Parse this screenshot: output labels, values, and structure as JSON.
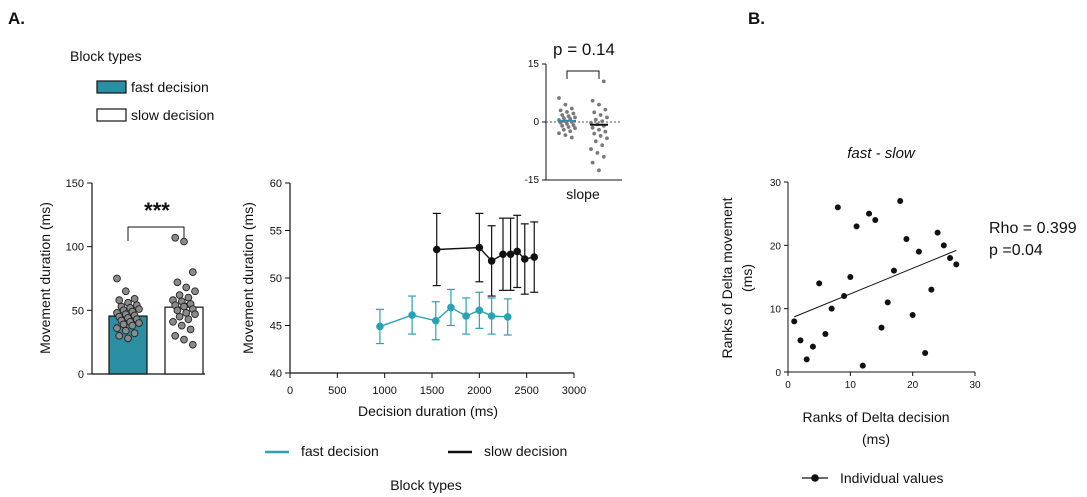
{
  "panel_labels": {
    "a": "A.",
    "b": "B."
  },
  "colors": {
    "fast": "#2a8fa3",
    "fast_line": "#2aa1b5",
    "slow": "#111111",
    "dot_fill": "#8a8a8a"
  },
  "block_legend": {
    "title": "Block types",
    "items": [
      {
        "label": "fast decision",
        "color": "#2a8fa3"
      },
      {
        "label": "slow decision",
        "color": "#ffffff"
      }
    ]
  },
  "bottom_legend": {
    "items": [
      {
        "label": "fast decision",
        "color": "#2aa1b5"
      },
      {
        "label": "slow decision",
        "color": "#111111"
      }
    ],
    "title": "Block types"
  },
  "panel_b_legend": {
    "label": "Individual values"
  },
  "chart_data": [
    {
      "id": "bar-chart",
      "type": "bar",
      "ylabel": "Movement duration (ms)",
      "ylim": [
        0,
        150
      ],
      "yticks": [
        0,
        50,
        100,
        150
      ],
      "annotation": "***",
      "bars": [
        {
          "name": "fast decision",
          "mean": 45.5,
          "points": [
            75,
            65,
            59,
            58,
            56,
            54,
            53,
            52,
            51,
            50,
            49,
            48,
            47,
            46,
            45,
            44,
            43,
            42,
            41,
            40,
            39,
            38,
            36,
            34,
            32,
            30,
            28
          ]
        },
        {
          "name": "slow decision",
          "mean": 52.5,
          "points": [
            107,
            104,
            80,
            72,
            68,
            65,
            62,
            60,
            58,
            57,
            55,
            54,
            53,
            51,
            50,
            48,
            47,
            45,
            43,
            41,
            38,
            35,
            30,
            27,
            23
          ]
        }
      ]
    },
    {
      "id": "line-chart",
      "type": "line",
      "xlabel": "Decision duration (ms)",
      "ylabel": "Movement duration (ms)",
      "xlim": [
        0,
        3000
      ],
      "ylim": [
        40,
        60
      ],
      "xticks": [
        0,
        500,
        1000,
        1500,
        2000,
        2500,
        3000
      ],
      "yticks": [
        40,
        45,
        50,
        55,
        60
      ],
      "series": [
        {
          "name": "fast decision",
          "x": [
            950,
            1290,
            1540,
            1700,
            1860,
            2000,
            2130,
            2300
          ],
          "y": [
            44.9,
            46.1,
            45.5,
            46.9,
            46.0,
            46.6,
            46.0,
            45.9
          ],
          "err": [
            1.8,
            2.0,
            2.0,
            1.9,
            1.9,
            1.9,
            1.9,
            1.9
          ]
        },
        {
          "name": "slow decision",
          "x": [
            1550,
            2000,
            2130,
            2250,
            2330,
            2400,
            2480,
            2580
          ],
          "y": [
            53.0,
            53.2,
            51.8,
            52.5,
            52.5,
            52.8,
            52.0,
            52.2
          ],
          "err": [
            3.8,
            3.6,
            3.7,
            3.8,
            3.8,
            3.8,
            3.7,
            3.7
          ]
        }
      ]
    },
    {
      "id": "slope-inset",
      "type": "scatter",
      "xlabel": "slope",
      "ylim": [
        -15,
        15
      ],
      "yticks": [
        -15,
        0,
        15
      ],
      "annotation": "p = 0.14",
      "groups": [
        {
          "name": "fast decision",
          "median": 0.3,
          "points": [
            6.2,
            4.5,
            3.5,
            3.0,
            2.6,
            2.2,
            1.8,
            1.5,
            1.2,
            1.0,
            0.8,
            0.5,
            0.2,
            0.0,
            -0.2,
            -0.5,
            -0.8,
            -1.0,
            -1.3,
            -1.6,
            -2.0,
            -2.4,
            -2.9,
            -3.4,
            -4.0
          ]
        },
        {
          "name": "slow decision",
          "median": -0.7,
          "points": [
            10.5,
            5.5,
            4.5,
            3.2,
            2.5,
            1.8,
            1.2,
            0.6,
            0.2,
            -0.2,
            -0.6,
            -1.0,
            -1.5,
            -2.0,
            -2.5,
            -3.0,
            -3.6,
            -4.2,
            -5.0,
            -6.0,
            -7.0,
            -8.0,
            -9.0,
            -10.5,
            -12.5
          ]
        }
      ]
    },
    {
      "id": "correlation",
      "type": "scatter",
      "title": "fast - slow",
      "xlabel": "Ranks of Delta decision (ms)",
      "xlabel_lines": [
        "Ranks of Delta decision",
        "(ms)"
      ],
      "ylabel": "Ranks of Delta movement (ms)",
      "ylabel_lines": [
        "Ranks of Delta movement",
        "(ms)"
      ],
      "xlim": [
        0,
        30
      ],
      "ylim": [
        0,
        30
      ],
      "xticks": [
        0,
        10,
        20,
        30
      ],
      "yticks": [
        0,
        10,
        20,
        30
      ],
      "stats": [
        "Rho = 0.399",
        "p =0.04"
      ],
      "fit": {
        "x": [
          1,
          27
        ],
        "y": [
          8.7,
          19.2
        ]
      },
      "points": [
        [
          1,
          8
        ],
        [
          2,
          5
        ],
        [
          3,
          2
        ],
        [
          4,
          4
        ],
        [
          5,
          14
        ],
        [
          6,
          6
        ],
        [
          7,
          10
        ],
        [
          8,
          26
        ],
        [
          9,
          12
        ],
        [
          10,
          15
        ],
        [
          11,
          23
        ],
        [
          12,
          1
        ],
        [
          13,
          25
        ],
        [
          14,
          24
        ],
        [
          15,
          7
        ],
        [
          16,
          11
        ],
        [
          17,
          16
        ],
        [
          18,
          27
        ],
        [
          19,
          21
        ],
        [
          20,
          9
        ],
        [
          21,
          19
        ],
        [
          22,
          3
        ],
        [
          23,
          13
        ],
        [
          24,
          22
        ],
        [
          25,
          20
        ],
        [
          26,
          18
        ],
        [
          27,
          17
        ]
      ]
    }
  ]
}
